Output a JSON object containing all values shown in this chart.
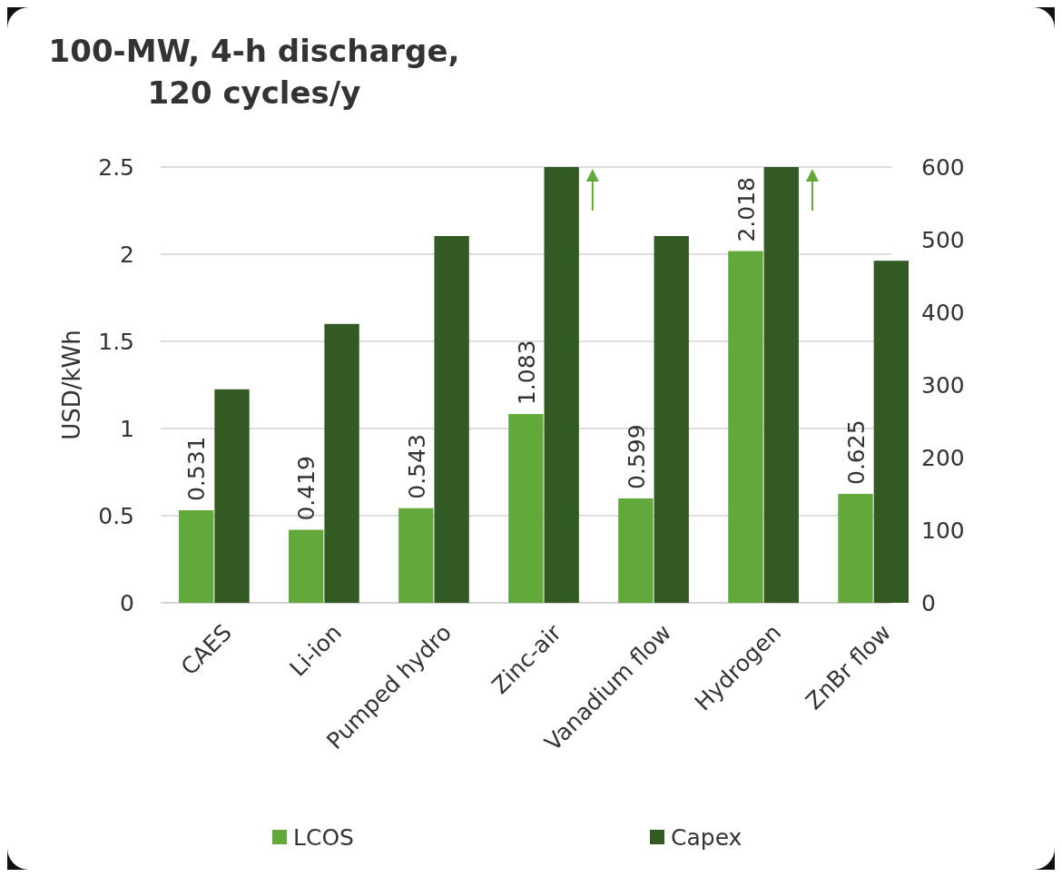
{
  "chart_data": {
    "type": "bar",
    "title": "100-MW, 4-h discharge,\n120 cycles/y",
    "ylabel": "USD/kWh",
    "categories": [
      "CAES",
      "Li-ion",
      "Pumped hydro",
      "Zinc-air",
      "Vanadium flow",
      "Hydrogen",
      "ZnBr flow"
    ],
    "series": [
      {
        "name": "LCOS",
        "color": "#62a83a",
        "values": [
          0.531,
          0.419,
          0.543,
          1.083,
          0.599,
          2.018,
          0.625
        ],
        "value_labels": [
          "0.531",
          "0.419",
          "0.543",
          "1.083",
          "0.599",
          "2.018",
          "0.625"
        ]
      },
      {
        "name": "Capex",
        "color": "#335a22",
        "axis": "y2",
        "values": [
          294,
          384,
          505,
          600,
          505,
          600,
          471
        ]
      }
    ],
    "ylim": [
      0,
      2.5
    ],
    "yticks": [
      0,
      0.5,
      1,
      1.5,
      2,
      2.5
    ],
    "y2lim": [
      0,
      600
    ],
    "y2ticks": [
      0,
      100,
      200,
      300,
      400,
      500,
      600
    ],
    "grid": "y",
    "legend": "bottom"
  }
}
